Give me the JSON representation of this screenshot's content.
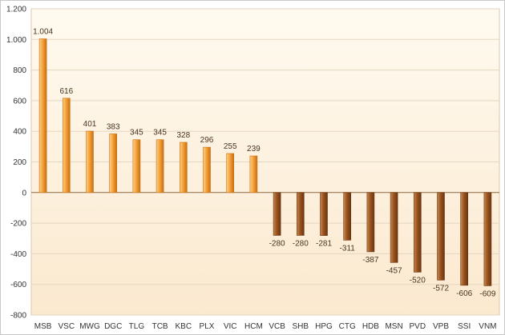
{
  "chart_data": {
    "type": "bar",
    "title": "",
    "xlabel": "",
    "ylabel": "",
    "categories": [
      "MSB",
      "VSC",
      "MWG",
      "DGC",
      "TLG",
      "TCB",
      "KBC",
      "PLX",
      "VIC",
      "HCM",
      "VCB",
      "SHB",
      "HPG",
      "CTG",
      "HDB",
      "MSN",
      "PVD",
      "VPB",
      "SSI",
      "VNM"
    ],
    "values": [
      1004,
      616,
      401,
      383,
      345,
      345,
      328,
      296,
      255,
      239,
      -280,
      -280,
      -281,
      -311,
      -387,
      -457,
      -520,
      -572,
      -606,
      -609
    ],
    "data_labels": [
      "1.004",
      "616",
      "401",
      "383",
      "345",
      "345",
      "328",
      "296",
      "255",
      "239",
      "-280",
      "-280",
      "-281",
      "-311",
      "-387",
      "-457",
      "-520",
      "-572",
      "-606",
      "-609"
    ],
    "ylim": [
      -800,
      1200
    ],
    "yticks": [
      -800,
      -600,
      -400,
      -200,
      0,
      200,
      400,
      600,
      800,
      1000,
      1200
    ],
    "ytick_labels": [
      "-800",
      "-600",
      "-400",
      "-200",
      "0",
      "200",
      "400",
      "600",
      "800",
      "1.000",
      "1.200"
    ],
    "grid": true,
    "legend": "none",
    "colors": {
      "positive_light": "#ffd08a",
      "positive_mid": "#f5a33a",
      "positive_dark": "#c96f12",
      "negative_light": "#c98a4e",
      "negative_mid": "#9a5320",
      "negative_dark": "#6b3510",
      "plot_background_top": "#fffaf0",
      "plot_background_bottom": "#fbe9cf",
      "zero_line": "#8c6a44",
      "axis_text": "#333333"
    }
  }
}
